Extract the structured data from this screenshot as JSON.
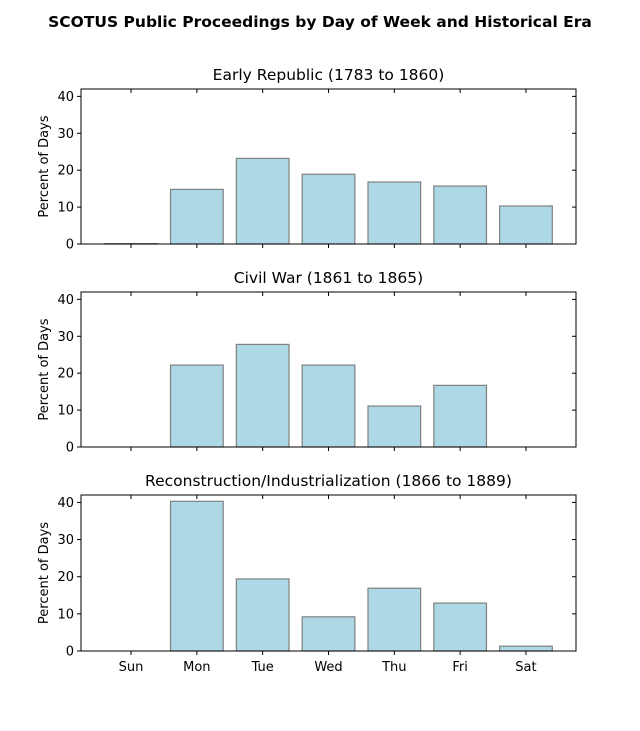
{
  "suptitle": "SCOTUS Public Proceedings by Day of Week and Historical Era",
  "style": {
    "bar_fill": "#add8e6",
    "bar_edge": "#808080",
    "axis_color": "#000000",
    "background": "#ffffff"
  },
  "chart_data": [
    {
      "type": "bar",
      "title": "Early Republic (1783 to 1860)",
      "ylabel": "Percent of Days",
      "xlabel": "",
      "categories": [
        "Sun",
        "Mon",
        "Tue",
        "Wed",
        "Thu",
        "Fri",
        "Sat"
      ],
      "values": [
        0.1,
        14.8,
        23.2,
        18.9,
        16.8,
        15.7,
        10.3
      ],
      "ylim": [
        0,
        42
      ],
      "yticks": [
        0,
        10,
        20,
        30,
        40
      ],
      "show_xticklabels": false
    },
    {
      "type": "bar",
      "title": "Civil War (1861 to 1865)",
      "ylabel": "Percent of Days",
      "xlabel": "",
      "categories": [
        "Sun",
        "Mon",
        "Tue",
        "Wed",
        "Thu",
        "Fri",
        "Sat"
      ],
      "values": [
        0,
        22.2,
        27.8,
        22.2,
        11.1,
        16.7,
        0
      ],
      "ylim": [
        0,
        42
      ],
      "yticks": [
        0,
        10,
        20,
        30,
        40
      ],
      "show_xticklabels": false
    },
    {
      "type": "bar",
      "title": "Reconstruction/Industrialization (1866 to 1889)",
      "ylabel": "Percent of Days",
      "xlabel": "",
      "categories": [
        "Sun",
        "Mon",
        "Tue",
        "Wed",
        "Thu",
        "Fri",
        "Sat"
      ],
      "values": [
        0,
        40.3,
        19.4,
        9.2,
        16.9,
        12.9,
        1.3
      ],
      "ylim": [
        0,
        42
      ],
      "yticks": [
        0,
        10,
        20,
        30,
        40
      ],
      "show_xticklabels": true
    }
  ]
}
